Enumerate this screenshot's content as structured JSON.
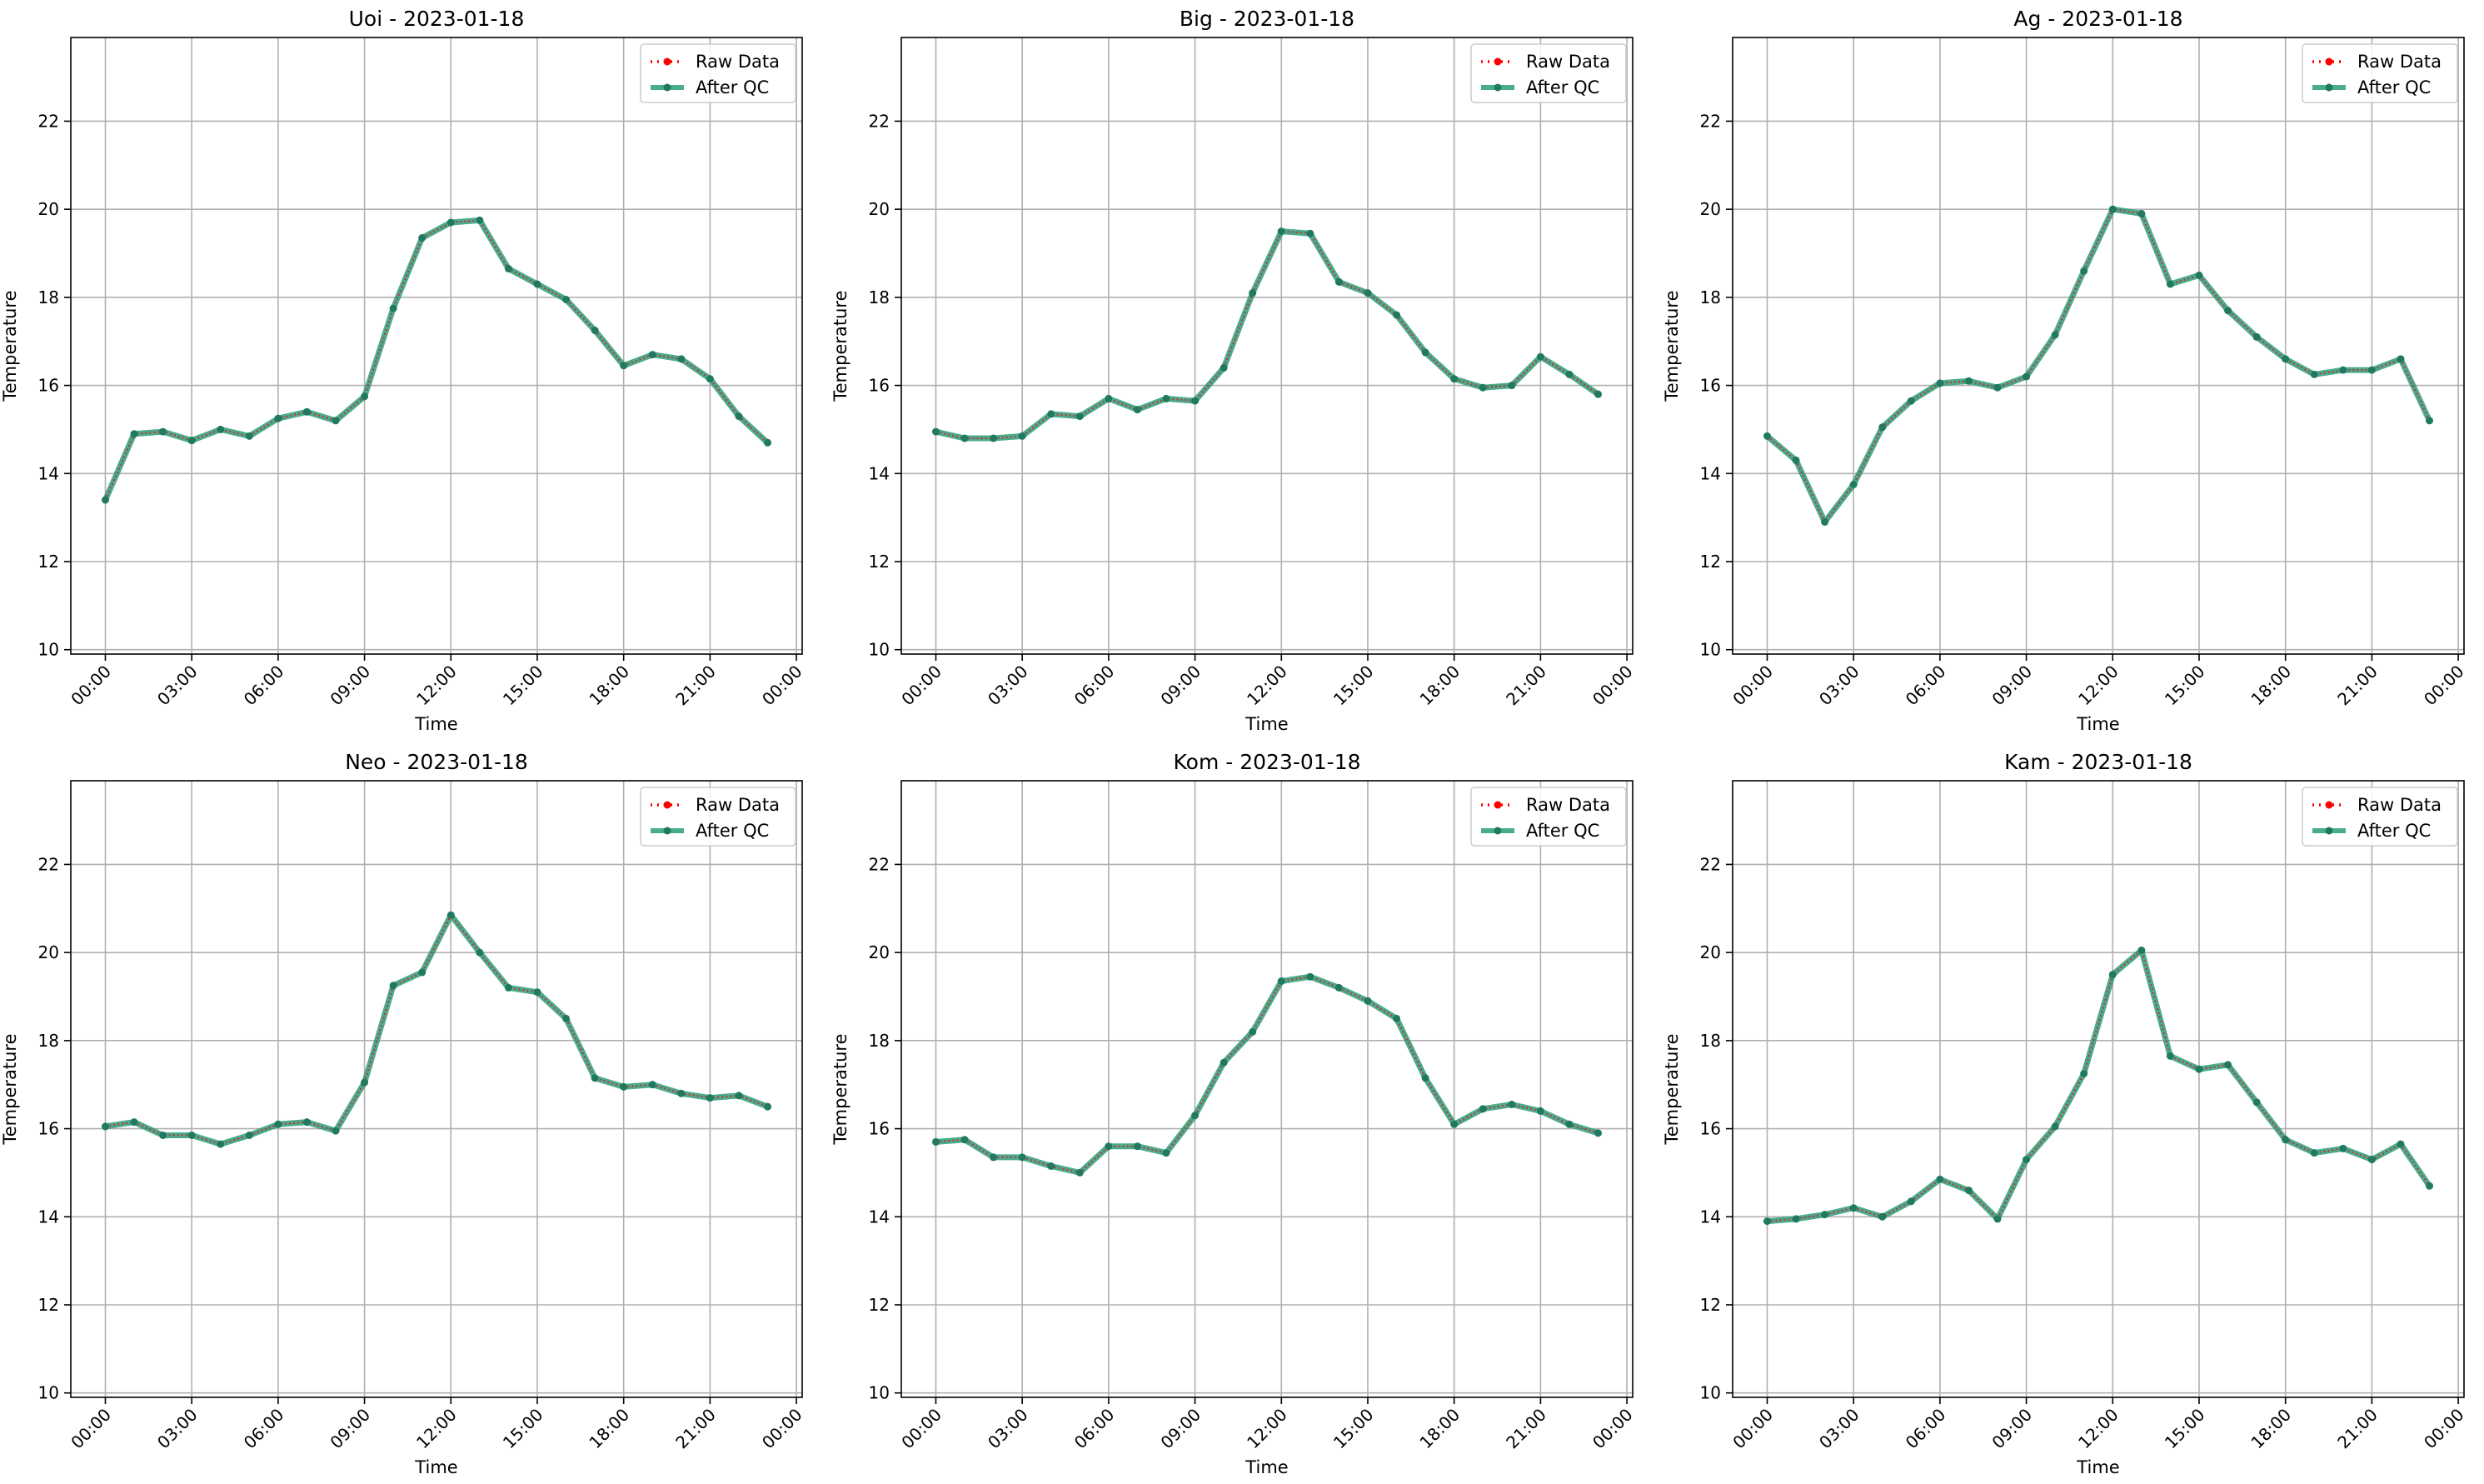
{
  "colors": {
    "raw": "#ff0000",
    "qc": "#2a9d7a",
    "qc_marker": "#217a5f",
    "grid": "#b0b0b0",
    "axes": "#000000",
    "legend_border": "#cccccc"
  },
  "legend": {
    "raw_label": "Raw Data",
    "qc_label": "After QC",
    "placement": "upper-right"
  },
  "chart_data": [
    {
      "type": "line",
      "title": "Uoi - 2023-01-18",
      "xlabel": "Time",
      "ylabel": "Temperature",
      "x_hours": [
        0,
        1,
        2,
        3,
        4,
        5,
        6,
        7,
        8,
        9,
        10,
        11,
        12,
        13,
        14,
        15,
        16,
        17,
        18,
        19,
        20,
        21,
        22,
        23
      ],
      "x_tick_labels": [
        "00:00",
        "03:00",
        "06:00",
        "09:00",
        "12:00",
        "15:00",
        "18:00",
        "21:00",
        "00:00"
      ],
      "xlim_hours": [
        -1.2,
        24.2
      ],
      "ylim": [
        9.9,
        23.9
      ],
      "y_ticks": [
        10,
        12,
        14,
        16,
        18,
        20,
        22
      ],
      "grid": true,
      "series": [
        {
          "name": "Raw Data",
          "values": [
            13.4,
            14.9,
            14.95,
            14.75,
            15.0,
            14.85,
            15.25,
            15.4,
            15.2,
            15.75,
            17.75,
            19.35,
            19.7,
            19.75,
            18.65,
            18.3,
            17.95,
            17.25,
            16.45,
            16.7,
            16.6,
            16.15,
            15.3,
            14.7
          ]
        },
        {
          "name": "After QC",
          "values": [
            13.4,
            14.9,
            14.95,
            14.75,
            15.0,
            14.85,
            15.25,
            15.4,
            15.2,
            15.75,
            17.75,
            19.35,
            19.7,
            19.75,
            18.65,
            18.3,
            17.95,
            17.25,
            16.45,
            16.7,
            16.6,
            16.15,
            15.3,
            14.7
          ]
        }
      ]
    },
    {
      "type": "line",
      "title": "Big - 2023-01-18",
      "xlabel": "Time",
      "ylabel": "Temperature",
      "x_hours": [
        0,
        1,
        2,
        3,
        4,
        5,
        6,
        7,
        8,
        9,
        10,
        11,
        12,
        13,
        14,
        15,
        16,
        17,
        18,
        19,
        20,
        21,
        22,
        23
      ],
      "x_tick_labels": [
        "00:00",
        "03:00",
        "06:00",
        "09:00",
        "12:00",
        "15:00",
        "18:00",
        "21:00",
        "00:00"
      ],
      "xlim_hours": [
        -1.2,
        24.2
      ],
      "ylim": [
        9.9,
        23.9
      ],
      "y_ticks": [
        10,
        12,
        14,
        16,
        18,
        20,
        22
      ],
      "grid": true,
      "series": [
        {
          "name": "Raw Data",
          "values": [
            14.95,
            14.8,
            14.8,
            14.85,
            15.35,
            15.3,
            15.7,
            15.45,
            15.7,
            15.65,
            16.4,
            18.1,
            19.5,
            19.45,
            18.35,
            18.1,
            17.6,
            16.75,
            16.15,
            15.95,
            16.0,
            16.65,
            16.25,
            15.8
          ]
        },
        {
          "name": "After QC",
          "values": [
            14.95,
            14.8,
            14.8,
            14.85,
            15.35,
            15.3,
            15.7,
            15.45,
            15.7,
            15.65,
            16.4,
            18.1,
            19.5,
            19.45,
            18.35,
            18.1,
            17.6,
            16.75,
            16.15,
            15.95,
            16.0,
            16.65,
            16.25,
            15.8
          ]
        }
      ]
    },
    {
      "type": "line",
      "title": "Ag - 2023-01-18",
      "xlabel": "Time",
      "ylabel": "Temperature",
      "x_hours": [
        0,
        1,
        2,
        3,
        4,
        5,
        6,
        7,
        8,
        9,
        10,
        11,
        12,
        13,
        14,
        15,
        16,
        17,
        18,
        19,
        20,
        21,
        22,
        23
      ],
      "x_tick_labels": [
        "00:00",
        "03:00",
        "06:00",
        "09:00",
        "12:00",
        "15:00",
        "18:00",
        "21:00",
        "00:00"
      ],
      "xlim_hours": [
        -1.2,
        24.2
      ],
      "ylim": [
        9.9,
        23.9
      ],
      "y_ticks": [
        10,
        12,
        14,
        16,
        18,
        20,
        22
      ],
      "grid": true,
      "series": [
        {
          "name": "Raw Data",
          "values": [
            14.85,
            14.3,
            12.9,
            13.75,
            15.05,
            15.65,
            16.05,
            16.1,
            15.95,
            16.2,
            17.15,
            18.6,
            20.0,
            19.9,
            18.3,
            18.5,
            17.7,
            17.1,
            16.6,
            16.25,
            16.35,
            16.35,
            16.6,
            15.2
          ]
        },
        {
          "name": "After QC",
          "values": [
            14.85,
            14.3,
            12.9,
            13.75,
            15.05,
            15.65,
            16.05,
            16.1,
            15.95,
            16.2,
            17.15,
            18.6,
            20.0,
            19.9,
            18.3,
            18.5,
            17.7,
            17.1,
            16.6,
            16.25,
            16.35,
            16.35,
            16.6,
            15.2
          ]
        }
      ]
    },
    {
      "type": "line",
      "title": "Neo - 2023-01-18",
      "xlabel": "Time",
      "ylabel": "Temperature",
      "x_hours": [
        0,
        1,
        2,
        3,
        4,
        5,
        6,
        7,
        8,
        9,
        10,
        11,
        12,
        13,
        14,
        15,
        16,
        17,
        18,
        19,
        20,
        21,
        22,
        23
      ],
      "x_tick_labels": [
        "00:00",
        "03:00",
        "06:00",
        "09:00",
        "12:00",
        "15:00",
        "18:00",
        "21:00",
        "00:00"
      ],
      "xlim_hours": [
        -1.2,
        24.2
      ],
      "ylim": [
        9.9,
        23.9
      ],
      "y_ticks": [
        10,
        12,
        14,
        16,
        18,
        20,
        22
      ],
      "grid": true,
      "series": [
        {
          "name": "Raw Data",
          "values": [
            16.05,
            16.15,
            15.85,
            15.85,
            15.65,
            15.85,
            16.1,
            16.15,
            15.95,
            17.05,
            19.25,
            19.55,
            20.85,
            20.0,
            19.2,
            19.1,
            18.5,
            17.15,
            16.95,
            17.0,
            16.8,
            16.7,
            16.75,
            16.5
          ]
        },
        {
          "name": "After QC",
          "values": [
            16.05,
            16.15,
            15.85,
            15.85,
            15.65,
            15.85,
            16.1,
            16.15,
            15.95,
            17.05,
            19.25,
            19.55,
            20.85,
            20.0,
            19.2,
            19.1,
            18.5,
            17.15,
            16.95,
            17.0,
            16.8,
            16.7,
            16.75,
            16.5
          ]
        }
      ]
    },
    {
      "type": "line",
      "title": "Kom - 2023-01-18",
      "xlabel": "Time",
      "ylabel": "Temperature",
      "x_hours": [
        0,
        1,
        2,
        3,
        4,
        5,
        6,
        7,
        8,
        9,
        10,
        11,
        12,
        13,
        14,
        15,
        16,
        17,
        18,
        19,
        20,
        21,
        22,
        23
      ],
      "x_tick_labels": [
        "00:00",
        "03:00",
        "06:00",
        "09:00",
        "12:00",
        "15:00",
        "18:00",
        "21:00",
        "00:00"
      ],
      "xlim_hours": [
        -1.2,
        24.2
      ],
      "ylim": [
        9.9,
        23.9
      ],
      "y_ticks": [
        10,
        12,
        14,
        16,
        18,
        20,
        22
      ],
      "grid": true,
      "series": [
        {
          "name": "Raw Data",
          "values": [
            15.7,
            15.75,
            15.35,
            15.35,
            15.15,
            15.0,
            15.6,
            15.6,
            15.45,
            16.3,
            17.5,
            18.2,
            19.35,
            19.45,
            19.2,
            18.9,
            18.5,
            17.15,
            16.1,
            16.45,
            16.55,
            16.4,
            16.1,
            15.9
          ]
        },
        {
          "name": "After QC",
          "values": [
            15.7,
            15.75,
            15.35,
            15.35,
            15.15,
            15.0,
            15.6,
            15.6,
            15.45,
            16.3,
            17.5,
            18.2,
            19.35,
            19.45,
            19.2,
            18.9,
            18.5,
            17.15,
            16.1,
            16.45,
            16.55,
            16.4,
            16.1,
            15.9
          ]
        }
      ]
    },
    {
      "type": "line",
      "title": "Kam - 2023-01-18",
      "xlabel": "Time",
      "ylabel": "Temperature",
      "x_hours": [
        0,
        1,
        2,
        3,
        4,
        5,
        6,
        7,
        8,
        9,
        10,
        11,
        12,
        13,
        14,
        15,
        16,
        17,
        18,
        19,
        20,
        21,
        22,
        23
      ],
      "x_tick_labels": [
        "00:00",
        "03:00",
        "06:00",
        "09:00",
        "12:00",
        "15:00",
        "18:00",
        "21:00",
        "00:00"
      ],
      "xlim_hours": [
        -1.2,
        24.2
      ],
      "ylim": [
        9.9,
        23.9
      ],
      "y_ticks": [
        10,
        12,
        14,
        16,
        18,
        20,
        22
      ],
      "grid": true,
      "series": [
        {
          "name": "Raw Data",
          "values": [
            13.9,
            13.95,
            14.05,
            14.2,
            14.0,
            14.35,
            14.85,
            14.6,
            13.95,
            15.3,
            16.05,
            17.25,
            19.5,
            20.05,
            17.65,
            17.35,
            17.45,
            16.6,
            15.75,
            15.45,
            15.55,
            15.3,
            15.65,
            14.7
          ]
        },
        {
          "name": "After QC",
          "values": [
            13.9,
            13.95,
            14.05,
            14.2,
            14.0,
            14.35,
            14.85,
            14.6,
            13.95,
            15.3,
            16.05,
            17.25,
            19.5,
            20.05,
            17.65,
            17.35,
            17.45,
            16.6,
            15.75,
            15.45,
            15.55,
            15.3,
            15.65,
            14.7
          ]
        }
      ]
    }
  ]
}
